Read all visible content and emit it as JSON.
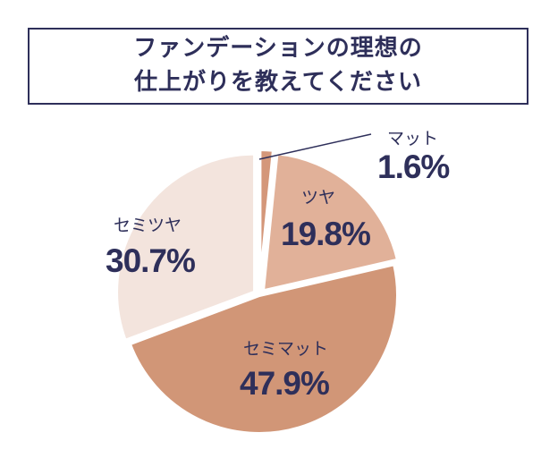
{
  "title": {
    "line1": "ファンデーションの理想の",
    "line2": "仕上がりを教えてください"
  },
  "chart_data": {
    "type": "pie",
    "title": "ファンデーションの理想の仕上がりを教えてください",
    "slices": [
      {
        "label": "マット",
        "value": 1.6,
        "value_text": "1.6%",
        "color": "#d4977a"
      },
      {
        "label": "ツヤ",
        "value": 19.8,
        "value_text": "19.8%",
        "color": "#e1b199"
      },
      {
        "label": "セミマット",
        "value": 47.9,
        "value_text": "47.9%",
        "color": "#d19677"
      },
      {
        "label": "セミツヤ",
        "value": 30.7,
        "value_text": "30.7%",
        "color": "#f3e4dd"
      }
    ]
  }
}
